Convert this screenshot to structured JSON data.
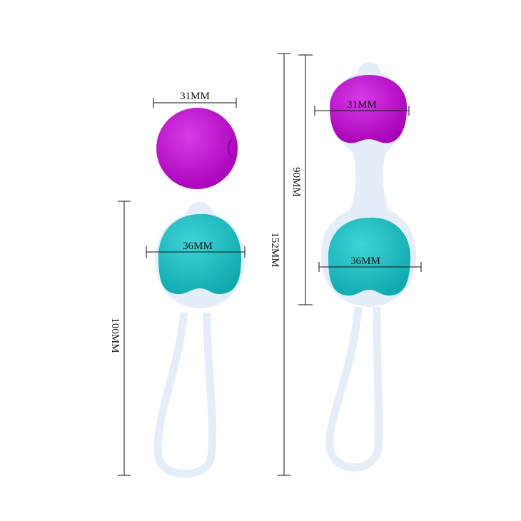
{
  "colors": {
    "purple": "#c512d2",
    "teal": "#1fc3c6",
    "cage": "#e3eef8",
    "line": "#111111"
  },
  "left_set": {
    "top_ball_width": "31MM",
    "bottom_ball_width": "36MM",
    "length": "100MM"
  },
  "right_set": {
    "total_length": "152MM",
    "balls_length": "90MM",
    "top_ball_width": "31MM",
    "bottom_ball_width": "36MM"
  }
}
